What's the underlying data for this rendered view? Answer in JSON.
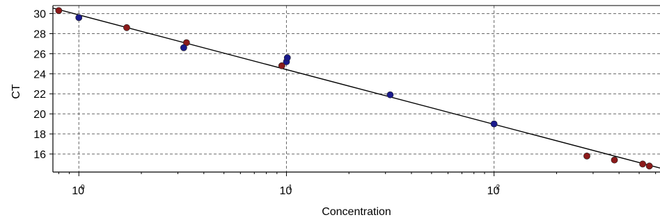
{
  "chart_data": {
    "type": "scatter",
    "title": "",
    "xlabel": "Concentration",
    "ylabel": "CT",
    "x_scale": "log",
    "xlim": [
      0.75,
      630
    ],
    "ylim": [
      14.2,
      30.8
    ],
    "grid": true,
    "x_ticks": [
      {
        "value": 1,
        "base": "10",
        "exp": "0"
      },
      {
        "value": 10,
        "base": "10",
        "exp": "1"
      },
      {
        "value": 100,
        "base": "10",
        "exp": "2"
      }
    ],
    "y_ticks": [
      16,
      18,
      20,
      22,
      24,
      26,
      28,
      30
    ],
    "colors": {
      "series_red": "#8b1a1a",
      "series_blue": "#1a1a8c",
      "fit_line": "#000000",
      "grid": "#666666"
    },
    "series": [
      {
        "marker_color": "red",
        "points": [
          {
            "x": 0.8,
            "y": 30.3
          },
          {
            "x": 1.7,
            "y": 28.6
          },
          {
            "x": 3.3,
            "y": 27.1
          },
          {
            "x": 9.5,
            "y": 24.8
          },
          {
            "x": 280,
            "y": 15.8
          },
          {
            "x": 380,
            "y": 15.4
          },
          {
            "x": 520,
            "y": 15.0
          },
          {
            "x": 560,
            "y": 14.8
          }
        ]
      },
      {
        "marker_color": "blue",
        "points": [
          {
            "x": 1.0,
            "y": 29.6
          },
          {
            "x": 3.2,
            "y": 26.6
          },
          {
            "x": 10.0,
            "y": 25.2
          },
          {
            "x": 10.1,
            "y": 25.6
          },
          {
            "x": 31.6,
            "y": 21.9
          },
          {
            "x": 100,
            "y": 19.0
          }
        ]
      }
    ],
    "fit_line": {
      "x": [
        0.75,
        630
      ],
      "y": [
        30.55,
        14.6
      ]
    }
  }
}
